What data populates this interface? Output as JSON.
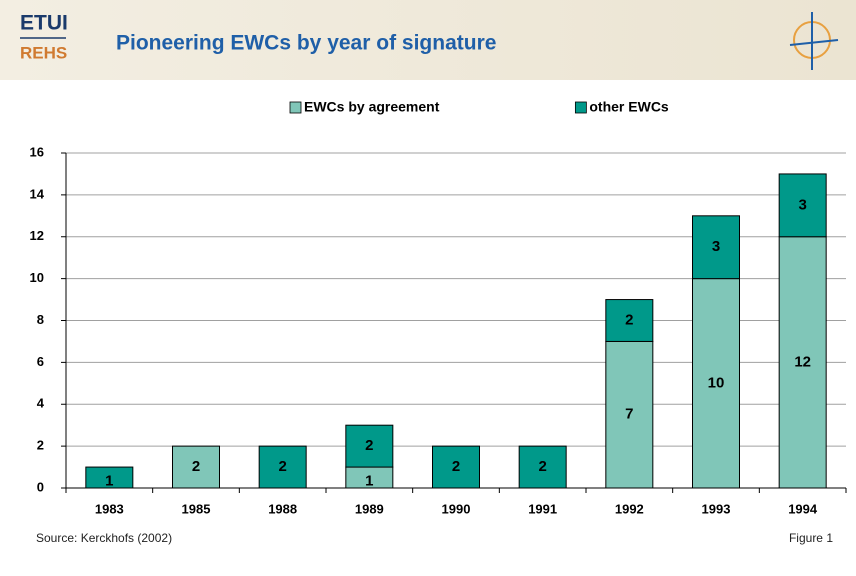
{
  "header": {
    "logo_top": "ETUI",
    "logo_bottom": "REHS"
  },
  "chart_data": {
    "type": "stacked_bar",
    "title": "Pioneering EWCs by year of signature",
    "categories": [
      "1983",
      "1985",
      "1988",
      "1989",
      "1990",
      "1991",
      "1992",
      "1993",
      "1994"
    ],
    "series": [
      {
        "name": "EWCs by agreement",
        "color": "#80c6b8",
        "values": [
          0,
          2,
          0,
          1,
          0,
          0,
          7,
          10,
          12
        ]
      },
      {
        "name": "other EWCs",
        "color": "#00998a",
        "values": [
          1,
          0,
          2,
          2,
          2,
          2,
          2,
          3,
          3
        ]
      }
    ],
    "ylim": [
      0,
      16
    ],
    "yticks": [
      0,
      2,
      4,
      6,
      8,
      10,
      12,
      14,
      16
    ],
    "grid": true,
    "legend": "top"
  },
  "footer": {
    "source": "Source: Kerckhofs (2002)",
    "figure": "Figure 1"
  }
}
